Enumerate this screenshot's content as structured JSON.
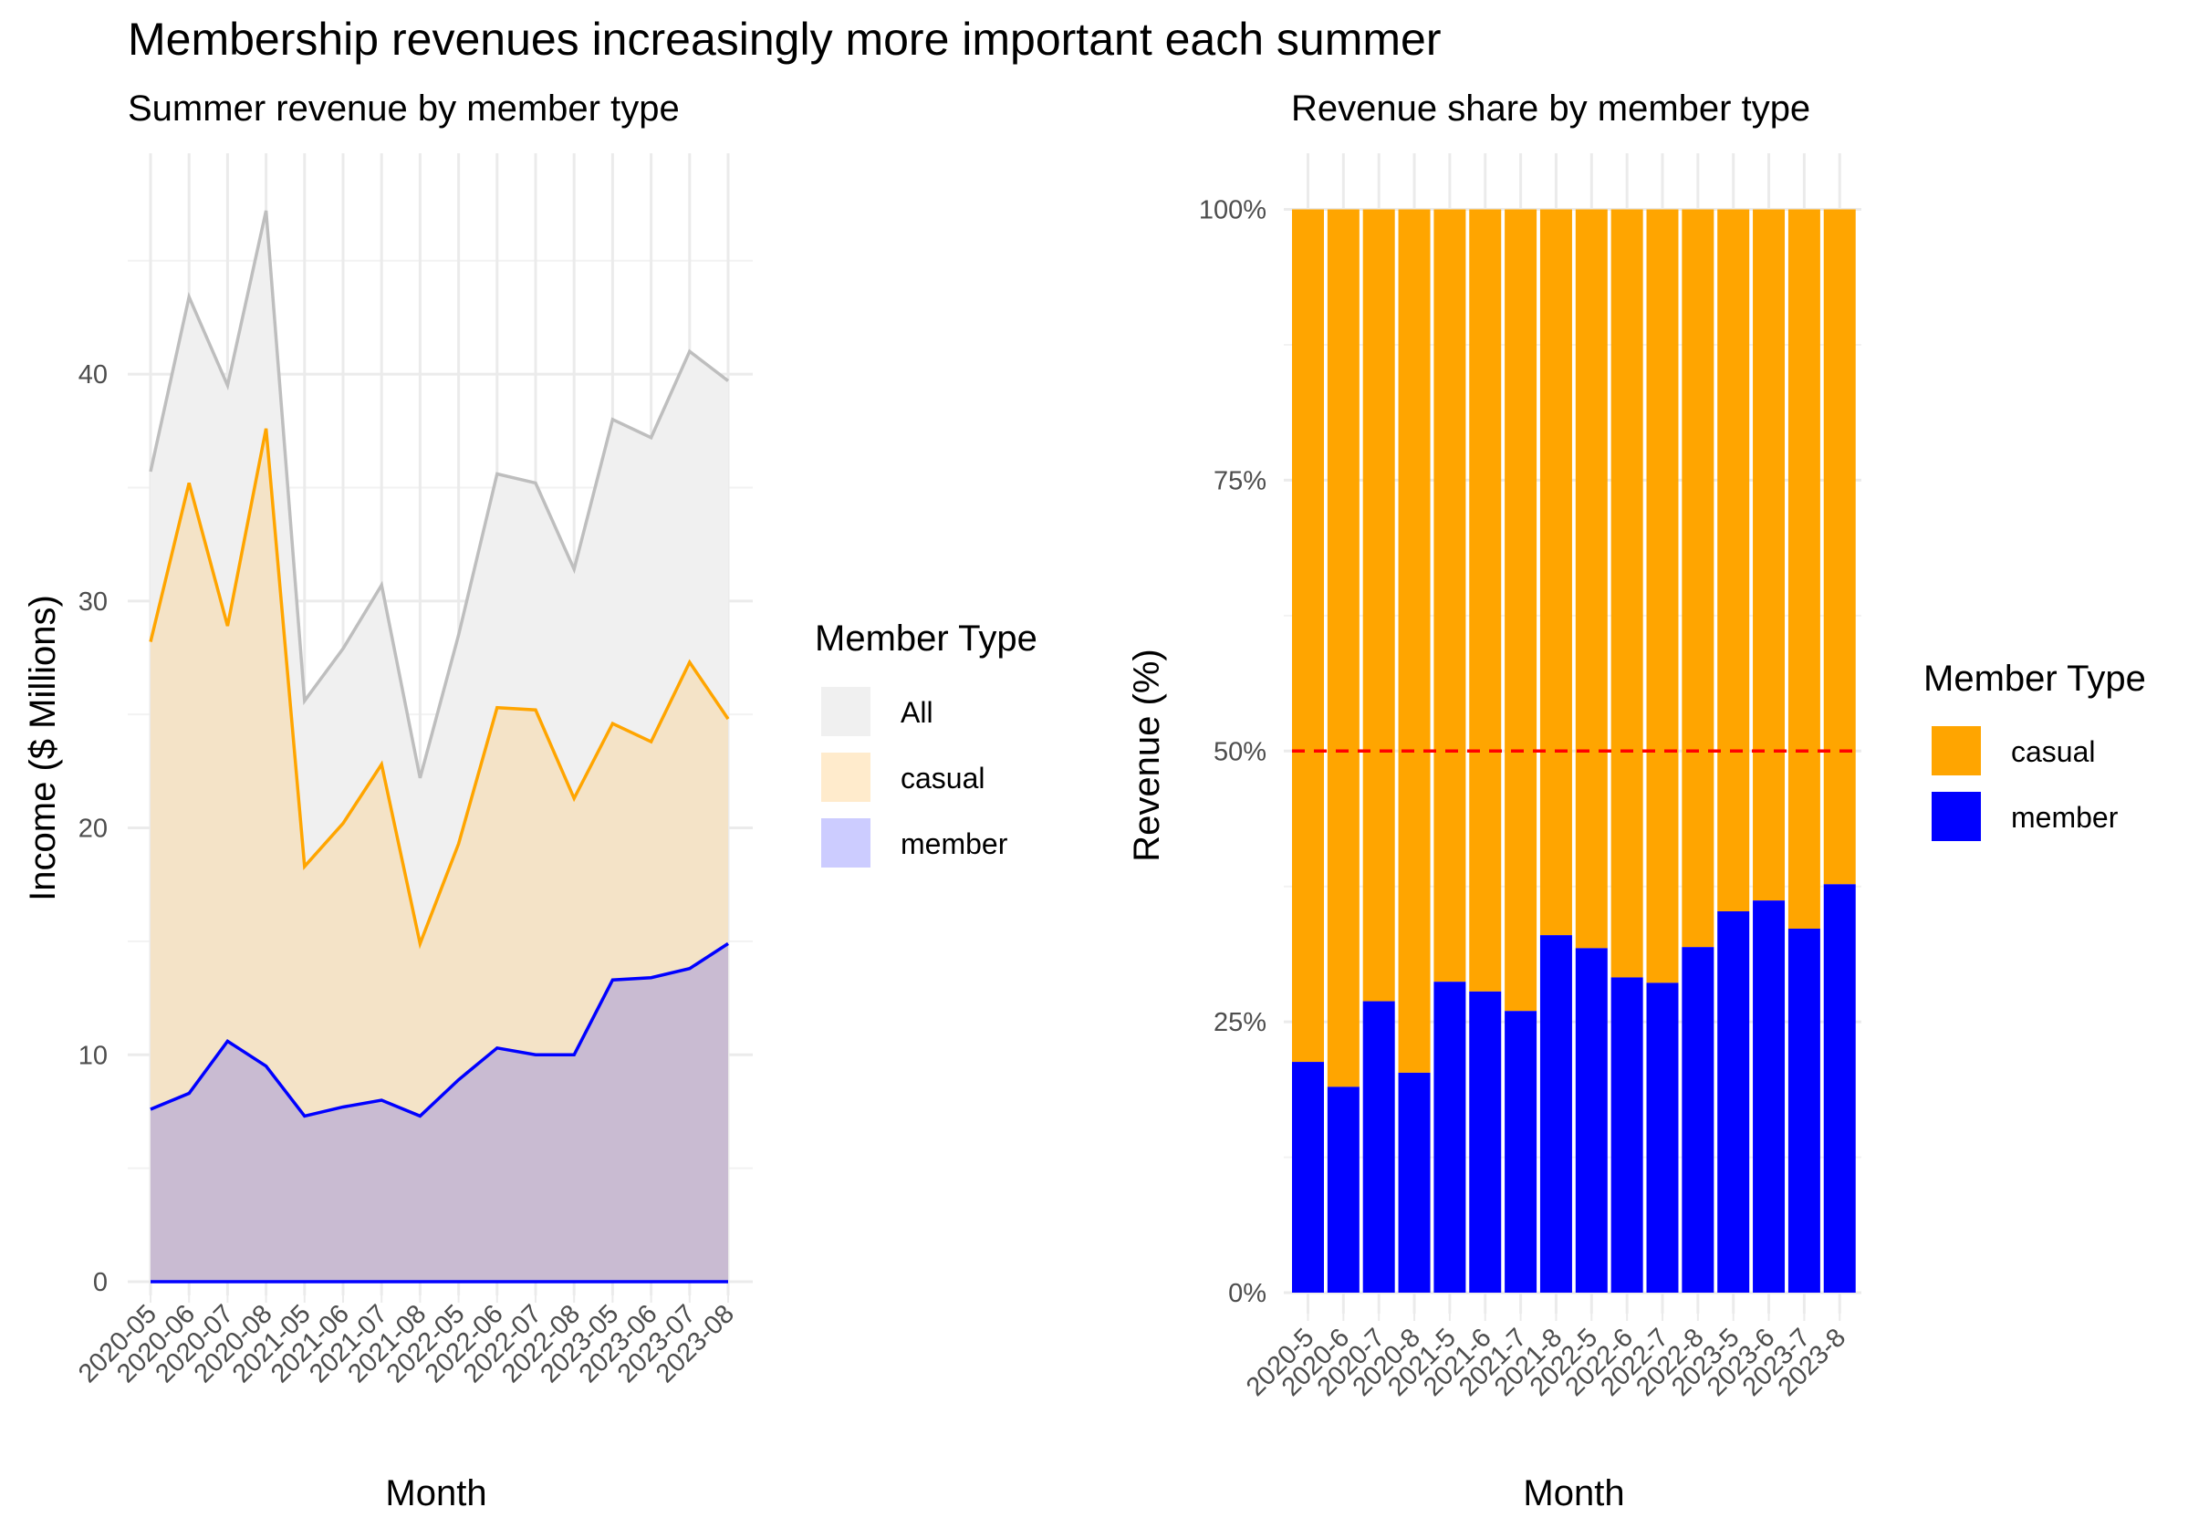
{
  "title": "Membership revenues increasingly more important each summer",
  "chart_data": [
    {
      "type": "area",
      "subtitle": "Summer revenue by member type",
      "xlabel": "Month",
      "ylabel": "Income ($ Millions)",
      "ylim": [
        0,
        47.2
      ],
      "yticks": [
        0,
        10,
        20,
        30,
        40
      ],
      "grid": true,
      "legend_position": "right",
      "categories": [
        "2020-05",
        "2020-06",
        "2020-07",
        "2020-08",
        "2021-05",
        "2021-06",
        "2021-07",
        "2021-08",
        "2022-05",
        "2022-06",
        "2022-07",
        "2022-08",
        "2023-05",
        "2023-06",
        "2023-07",
        "2023-08"
      ],
      "series": [
        {
          "name": "All",
          "color": "#bebebe",
          "fill": "#f0f0f0",
          "values": [
            35.7,
            43.4,
            39.5,
            47.2,
            25.6,
            27.9,
            30.7,
            22.2,
            28.5,
            35.6,
            35.2,
            31.4,
            38.0,
            37.2,
            41.0,
            39.7
          ]
        },
        {
          "name": "casual",
          "color": "#ffa500",
          "fill": "#f5e1bf",
          "values": [
            28.2,
            35.2,
            28.9,
            37.6,
            18.3,
            20.2,
            22.8,
            14.9,
            19.3,
            25.3,
            25.2,
            21.3,
            24.6,
            23.8,
            27.3,
            24.8
          ]
        },
        {
          "name": "member",
          "color": "#0000ff",
          "fill": "#c1b4d4",
          "values": [
            7.6,
            8.3,
            10.6,
            9.5,
            7.3,
            7.7,
            8.0,
            7.3,
            8.9,
            10.3,
            10.0,
            10.0,
            13.3,
            13.4,
            13.8,
            14.9
          ]
        }
      ],
      "legend": {
        "title": "Member Type",
        "entries": [
          {
            "label": "All",
            "fill": "#f0f0f0"
          },
          {
            "label": "casual",
            "fill": "#ffebcc"
          },
          {
            "label": "member",
            "fill": "#ccccff"
          }
        ]
      }
    },
    {
      "type": "bar",
      "stacked": true,
      "subtitle": "Revenue share by member type",
      "xlabel": "Month",
      "ylabel": "Revenue (%)",
      "ylim": [
        0,
        1
      ],
      "yticks": [
        "0%",
        "25%",
        "50%",
        "75%",
        "100%"
      ],
      "reference_line": {
        "y": 0.5,
        "color": "#ff0000",
        "style": "dashed"
      },
      "legend_position": "right",
      "categories": [
        "2020-5",
        "2020-6",
        "2020-7",
        "2020-8",
        "2021-5",
        "2021-6",
        "2021-7",
        "2021-8",
        "2022-5",
        "2022-6",
        "2022-7",
        "2022-8",
        "2023-5",
        "2023-6",
        "2023-7",
        "2023-8"
      ],
      "series": [
        {
          "name": "member",
          "color": "#0000ff",
          "values": [
            0.213,
            0.19,
            0.269,
            0.203,
            0.287,
            0.278,
            0.26,
            0.33,
            0.318,
            0.291,
            0.286,
            0.319,
            0.352,
            0.362,
            0.336,
            0.377
          ]
        },
        {
          "name": "casual",
          "color": "#ffa500",
          "values": [
            0.787,
            0.81,
            0.731,
            0.797,
            0.713,
            0.722,
            0.74,
            0.67,
            0.682,
            0.709,
            0.714,
            0.681,
            0.648,
            0.638,
            0.664,
            0.623
          ]
        }
      ],
      "legend": {
        "title": "Member Type",
        "entries": [
          {
            "label": "casual",
            "fill": "#ffa500"
          },
          {
            "label": "member",
            "fill": "#0000ff"
          }
        ]
      }
    }
  ]
}
